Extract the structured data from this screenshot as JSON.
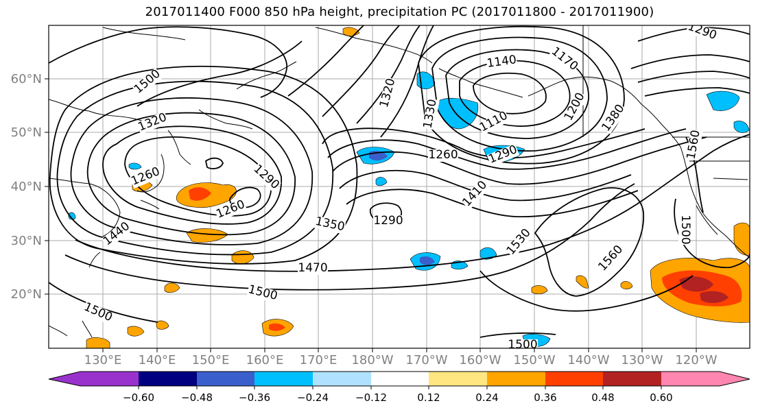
{
  "title": "2017011400 F000 850 hPa height, precipitation PC (2017011800 - 2017011900)",
  "map": {
    "lat_labels": [
      "60°N",
      "50°N",
      "40°N",
      "30°N",
      "20°N"
    ],
    "lon_labels": [
      "130°E",
      "140°E",
      "150°E",
      "160°E",
      "170°E",
      "180°W",
      "170°W",
      "160°W",
      "150°W",
      "140°W",
      "130°W",
      "120°W"
    ],
    "contour_labels": [
      "1500",
      "1320",
      "1290",
      "1260",
      "1260",
      "1290",
      "1350",
      "1470",
      "1500",
      "1500",
      "1320",
      "1330",
      "1260",
      "1290",
      "1140",
      "1170",
      "1110",
      "1200",
      "1380",
      "1290",
      "1410",
      "1530",
      "1560",
      "1500",
      "1560",
      "1500",
      "1440"
    ]
  },
  "colorbar": {
    "ticks": [
      "−0.60",
      "−0.48",
      "−0.36",
      "−0.24",
      "−0.12",
      "0.12",
      "0.24",
      "0.36",
      "0.48",
      "0.60"
    ],
    "colors": [
      "#9932cc",
      "#000080",
      "#3a5fcd",
      "#00bfff",
      "#b0e2ff",
      "#ffffff",
      "#ffe680",
      "#ffa500",
      "#ff4000",
      "#b22222",
      "#ff86b0"
    ]
  },
  "colors": {
    "contour": "#000000",
    "grid": "#aaaaaa",
    "axis_label": "#808080"
  }
}
